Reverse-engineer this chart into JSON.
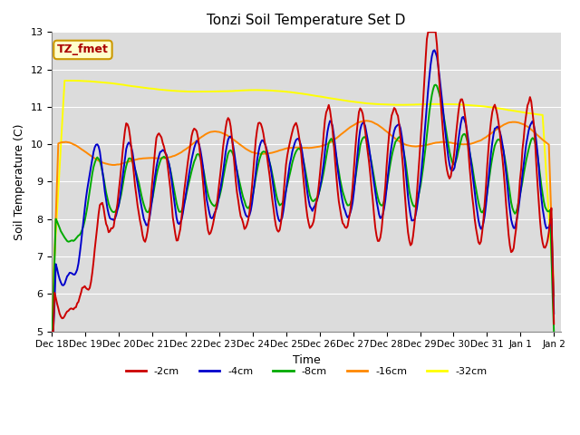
{
  "title": "Tonzi Soil Temperature Set D",
  "xlabel": "Time",
  "ylabel": "Soil Temperature (C)",
  "ylim": [
    5.0,
    13.0
  ],
  "yticks": [
    5.0,
    6.0,
    7.0,
    8.0,
    9.0,
    10.0,
    11.0,
    12.0,
    13.0
  ],
  "plot_bg": "#dcdcdc",
  "fig_bg": "#ffffff",
  "legend_label": "TZ_fmet",
  "colors": {
    "-2cm": "#cc0000",
    "-4cm": "#0000cc",
    "-8cm": "#00aa00",
    "-16cm": "#ff8800",
    "-32cm": "#ffff00"
  },
  "grid_color": "#ffffff",
  "title_fontsize": 11,
  "axis_fontsize": 9,
  "tick_fontsize": 7.5,
  "legend_fontsize": 8,
  "linewidth": 1.4
}
